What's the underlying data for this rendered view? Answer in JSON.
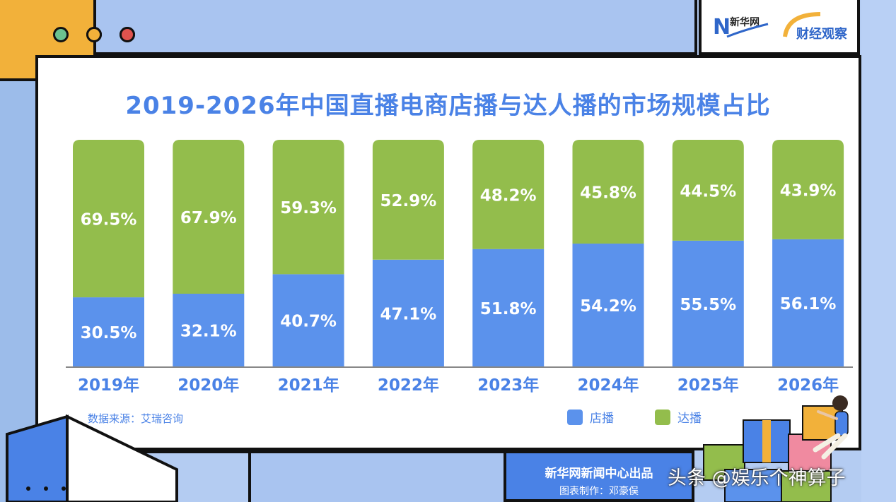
{
  "header": {
    "logo_xinhua": "新华网",
    "logo_finance": "财经观察"
  },
  "chart_data": {
    "type": "bar",
    "title": "2019-2026年中国直播电商店播与达人播的市场规模占比",
    "categories": [
      "2019年",
      "2020年",
      "2021年",
      "2022年",
      "2023年",
      "2024年",
      "2025年",
      "2026年"
    ],
    "series": [
      {
        "name": "店播",
        "values": [
          30.5,
          32.1,
          40.7,
          47.1,
          51.8,
          54.2,
          55.5,
          56.1
        ],
        "labels": [
          "30.5%",
          "32.1%",
          "40.7%",
          "47.1%",
          "51.8%",
          "54.2%",
          "55.5%",
          "56.1%"
        ],
        "color": "#5b92ec"
      },
      {
        "name": "达播",
        "values": [
          69.5,
          67.9,
          59.3,
          52.9,
          48.2,
          45.8,
          44.5,
          43.9
        ],
        "labels": [
          "69.5%",
          "67.9%",
          "59.3%",
          "52.9%",
          "48.2%",
          "45.8%",
          "44.5%",
          "43.9%"
        ],
        "color": "#93bd4c"
      }
    ],
    "stacked": true,
    "ylim": [
      0,
      100
    ],
    "legend_position": "bottom-right"
  },
  "source_text": "数据来源：艾瑞咨询",
  "credits": {
    "producer": "新华网新闻中心出品",
    "designer": "图表制作：邓豪俣"
  },
  "watermark": "头条 @娱乐个神算子",
  "colors": {
    "accent_blue": "#4a82e6",
    "store_blue": "#5b92ec",
    "influencer_green": "#93bd4c",
    "orange": "#f2b13a"
  }
}
